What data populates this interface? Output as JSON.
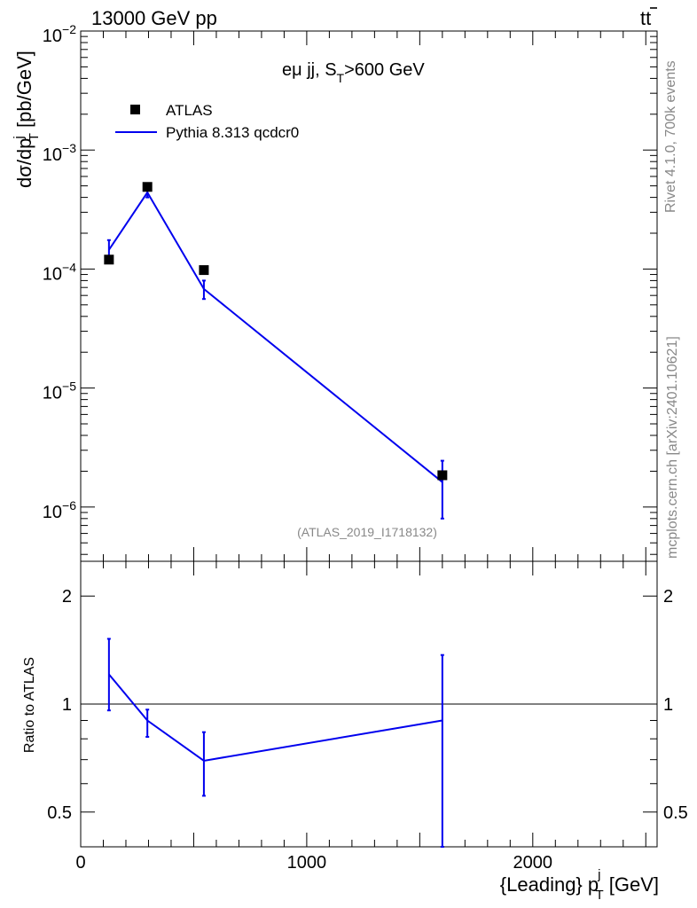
{
  "header": {
    "energy_label": "13000 GeV pp",
    "process_label_main": "tt",
    "process_label_bar": "̅"
  },
  "side": {
    "rivet_label": "Rivet 4.1.0,  700k events",
    "mcplots_label": "mcplots.cern.ch [arXiv:2401.10621]"
  },
  "chart_data": [
    {
      "type": "scatter",
      "panel": "main",
      "title_main": "eμ jj, S",
      "title_sub": "T",
      "title_tail": ">600 GeV",
      "ylabel_main": "dσ/dp",
      "ylabel_sub": "T",
      "ylabel_sup": "j",
      "ylabel_tail": " [pb/GeV]",
      "yscale": "log",
      "xlim": [
        0,
        2550
      ],
      "ylim": [
        3.5e-07,
        0.01
      ],
      "y_tick_labels": [
        {
          "base": "10",
          "exp": "−6",
          "value": 1e-06
        },
        {
          "base": "10",
          "exp": "−5",
          "value": 1e-05
        },
        {
          "base": "10",
          "exp": "−4",
          "value": 0.0001
        },
        {
          "base": "10",
          "exp": "−3",
          "value": 0.001
        },
        {
          "base": "10",
          "exp": "−2",
          "value": 0.01
        }
      ],
      "legend": [
        {
          "label": "ATLAS",
          "marker": "square",
          "color": "#000000"
        },
        {
          "label": "Pythia 8.313 qcdcr0",
          "marker": "line",
          "color": "#0000ee"
        }
      ],
      "legend_position": "top-left",
      "watermark": "(ATLAS_2019_I1718132)",
      "series": [
        {
          "name": "ATLAS",
          "color": "#000000",
          "x": [
            125,
            295,
            545,
            1600
          ],
          "y": [
            0.00012,
            0.00049,
            9.8e-05,
            1.85e-06
          ]
        },
        {
          "name": "Pythia 8.313 qcdcr0",
          "color": "#0000ee",
          "x": [
            125,
            295,
            545,
            1600
          ],
          "y": [
            0.000145,
            0.00044,
            6.8e-05,
            1.62e-06
          ],
          "err_low": [
            0.00012,
            0.0004,
            5.6e-05,
            8e-07
          ],
          "err_high": [
            0.000175,
            0.00048,
            8e-05,
            2.45e-06
          ]
        }
      ]
    },
    {
      "type": "line",
      "panel": "ratio",
      "ylabel": "Ratio to ATLAS",
      "xlabel_main": "{Leading} p",
      "xlabel_sub": "T",
      "xlabel_sup": "j",
      "xlabel_tail": " [GeV]",
      "yscale": "log",
      "xlim": [
        0,
        2550
      ],
      "ylim": [
        0.4,
        2.5
      ],
      "x_ticks": [
        0,
        1000,
        2000
      ],
      "x_tick_labels": [
        "0",
        "1000",
        "2000"
      ],
      "y_ticks": [
        0.5,
        1,
        2
      ],
      "y_tick_labels": [
        "0.5",
        "1",
        "2"
      ],
      "reference_line": 1,
      "series": [
        {
          "name": "Pythia 8.313 qcdcr0",
          "color": "#0000ee",
          "x": [
            125,
            295,
            545,
            1600
          ],
          "y": [
            1.21,
            0.9,
            0.695,
            0.9
          ],
          "err_low": [
            0.96,
            0.81,
            0.555,
            0.4
          ],
          "err_high": [
            1.52,
            0.965,
            0.835,
            1.37
          ]
        }
      ]
    }
  ]
}
